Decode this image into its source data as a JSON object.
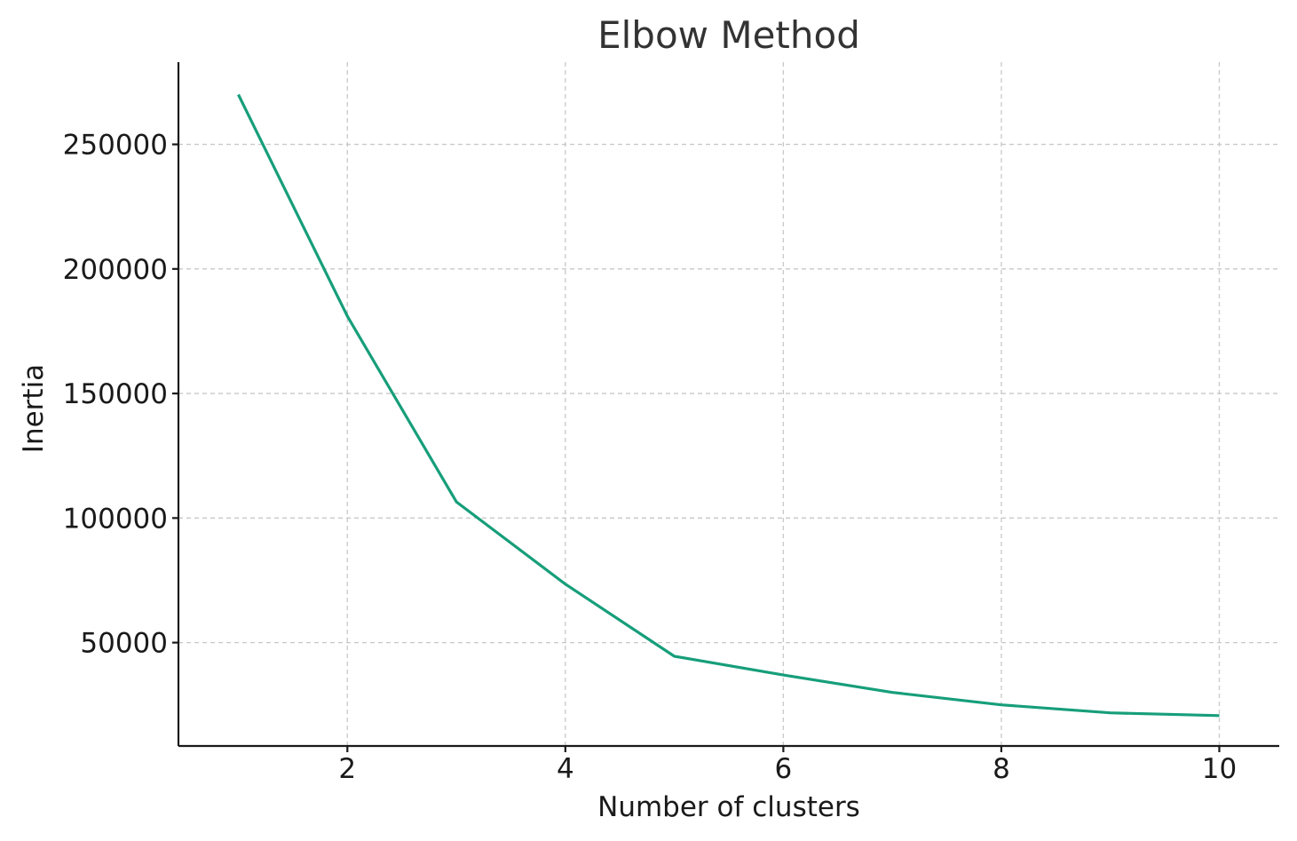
{
  "chart_data": {
    "type": "line",
    "title": "Elbow Method",
    "xlabel": "Number of clusters",
    "ylabel": "Inertia",
    "x": [
      1,
      2,
      3,
      4,
      5,
      6,
      7,
      8,
      9,
      10
    ],
    "series": [
      {
        "values": [
          270000,
          181000,
          106500,
          73500,
          44500,
          37000,
          30000,
          25000,
          21800,
          20700
        ],
        "color": "#169e7a"
      }
    ],
    "xlim": [
      0.45,
      10.55
    ],
    "ylim": [
      8500,
      283000
    ],
    "xticks": [
      2,
      4,
      6,
      8,
      10
    ],
    "yticks": [
      50000,
      100000,
      150000,
      200000,
      250000
    ],
    "grid": true,
    "legend": "none"
  }
}
